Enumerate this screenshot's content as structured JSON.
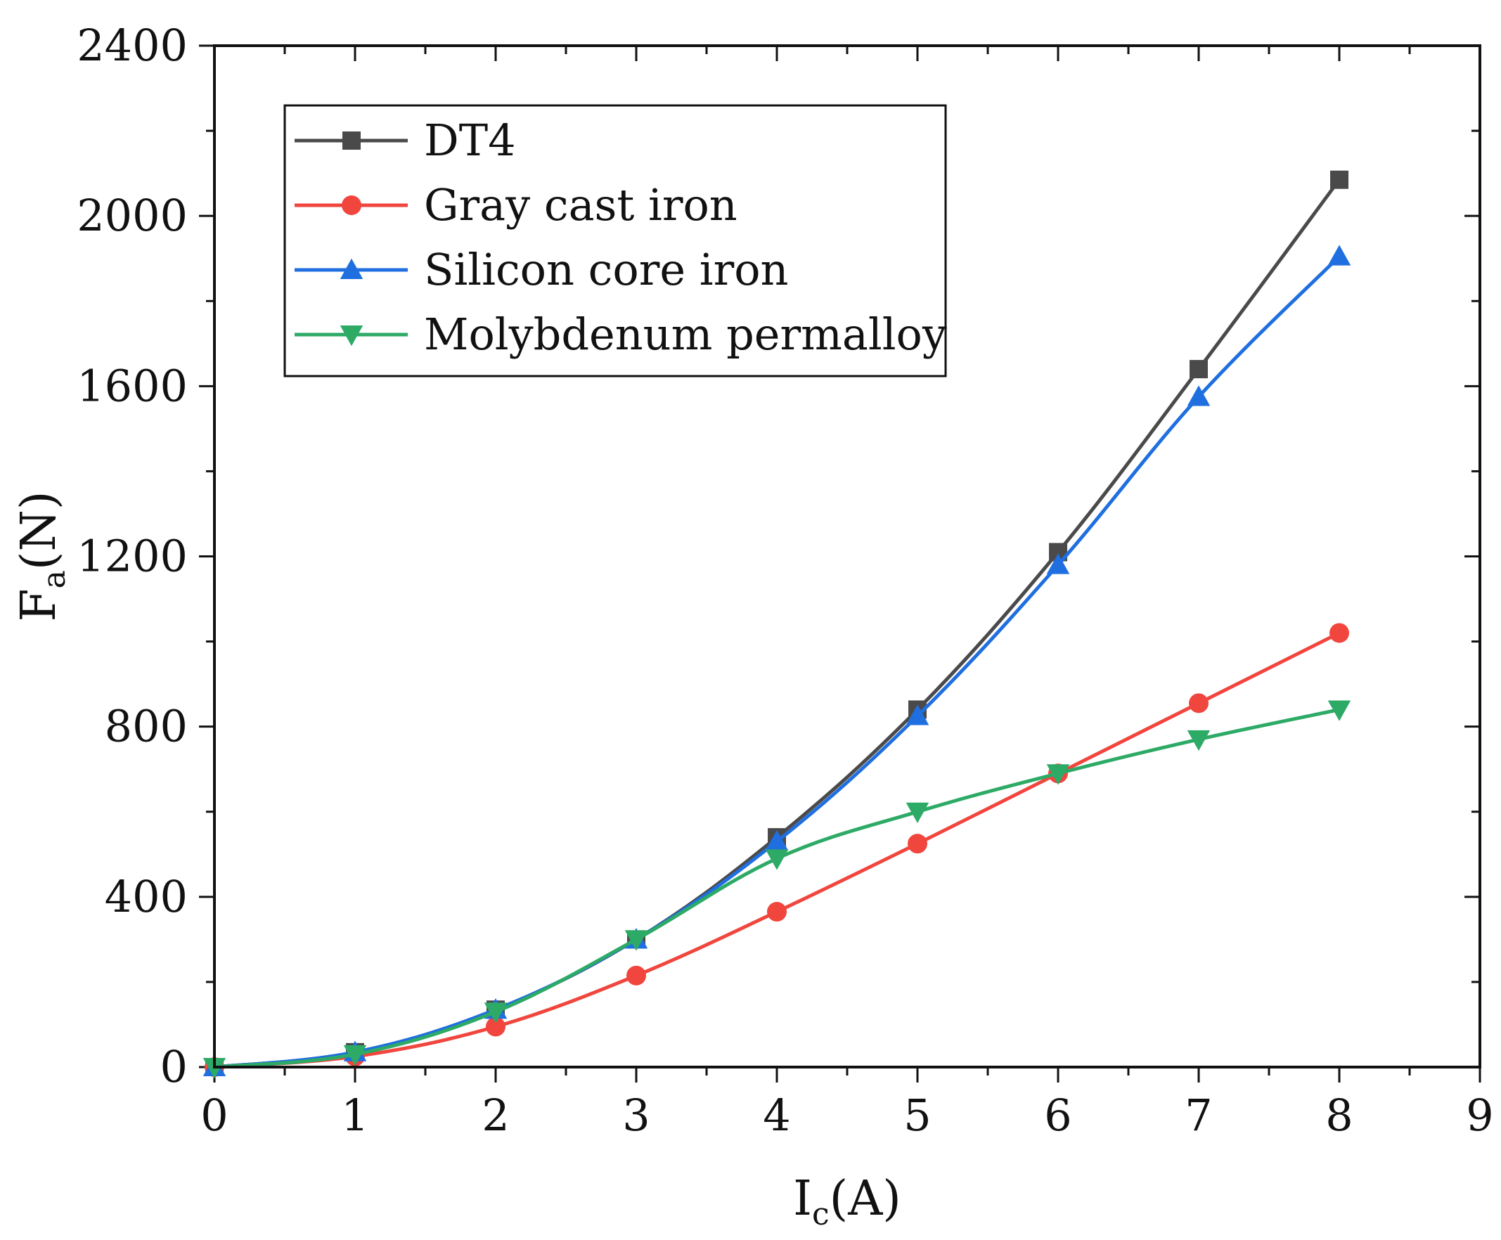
{
  "chart_data": {
    "type": "line",
    "title": "",
    "x": [
      0,
      1,
      2,
      3,
      4,
      5,
      6,
      7,
      8
    ],
    "xlim": [
      0,
      9
    ],
    "ylim": [
      0,
      2400
    ],
    "x_ticks": [
      "0",
      "1",
      "2",
      "3",
      "4",
      "5",
      "6",
      "7",
      "8",
      "9"
    ],
    "y_ticks": [
      "0",
      "400",
      "800",
      "1200",
      "1600",
      "2000",
      "2400"
    ],
    "xlabel": {
      "main": "I",
      "sub": "c",
      "unit": "(A)"
    },
    "ylabel": {
      "main": "F",
      "sub": "a",
      "unit": "(N)"
    },
    "grid": false,
    "legend_position": "top-left",
    "series": [
      {
        "name": "DT4",
        "color": "#4a4a4a",
        "marker": "square",
        "values": [
          0,
          35,
          135,
          300,
          540,
          840,
          1210,
          1640,
          2085
        ]
      },
      {
        "name": "Gray cast iron",
        "color": "#f0463e",
        "marker": "circle",
        "values": [
          0,
          25,
          95,
          215,
          365,
          525,
          690,
          855,
          1020
        ]
      },
      {
        "name": "Silicon core iron",
        "color": "#1f6fe0",
        "marker": "triangle-up",
        "values": [
          0,
          35,
          135,
          300,
          530,
          825,
          1180,
          1575,
          1905
        ]
      },
      {
        "name": "Molybdenum permalloy",
        "color": "#2daa66",
        "marker": "triangle-down",
        "values": [
          0,
          30,
          130,
          300,
          490,
          600,
          690,
          770,
          840
        ]
      }
    ]
  }
}
